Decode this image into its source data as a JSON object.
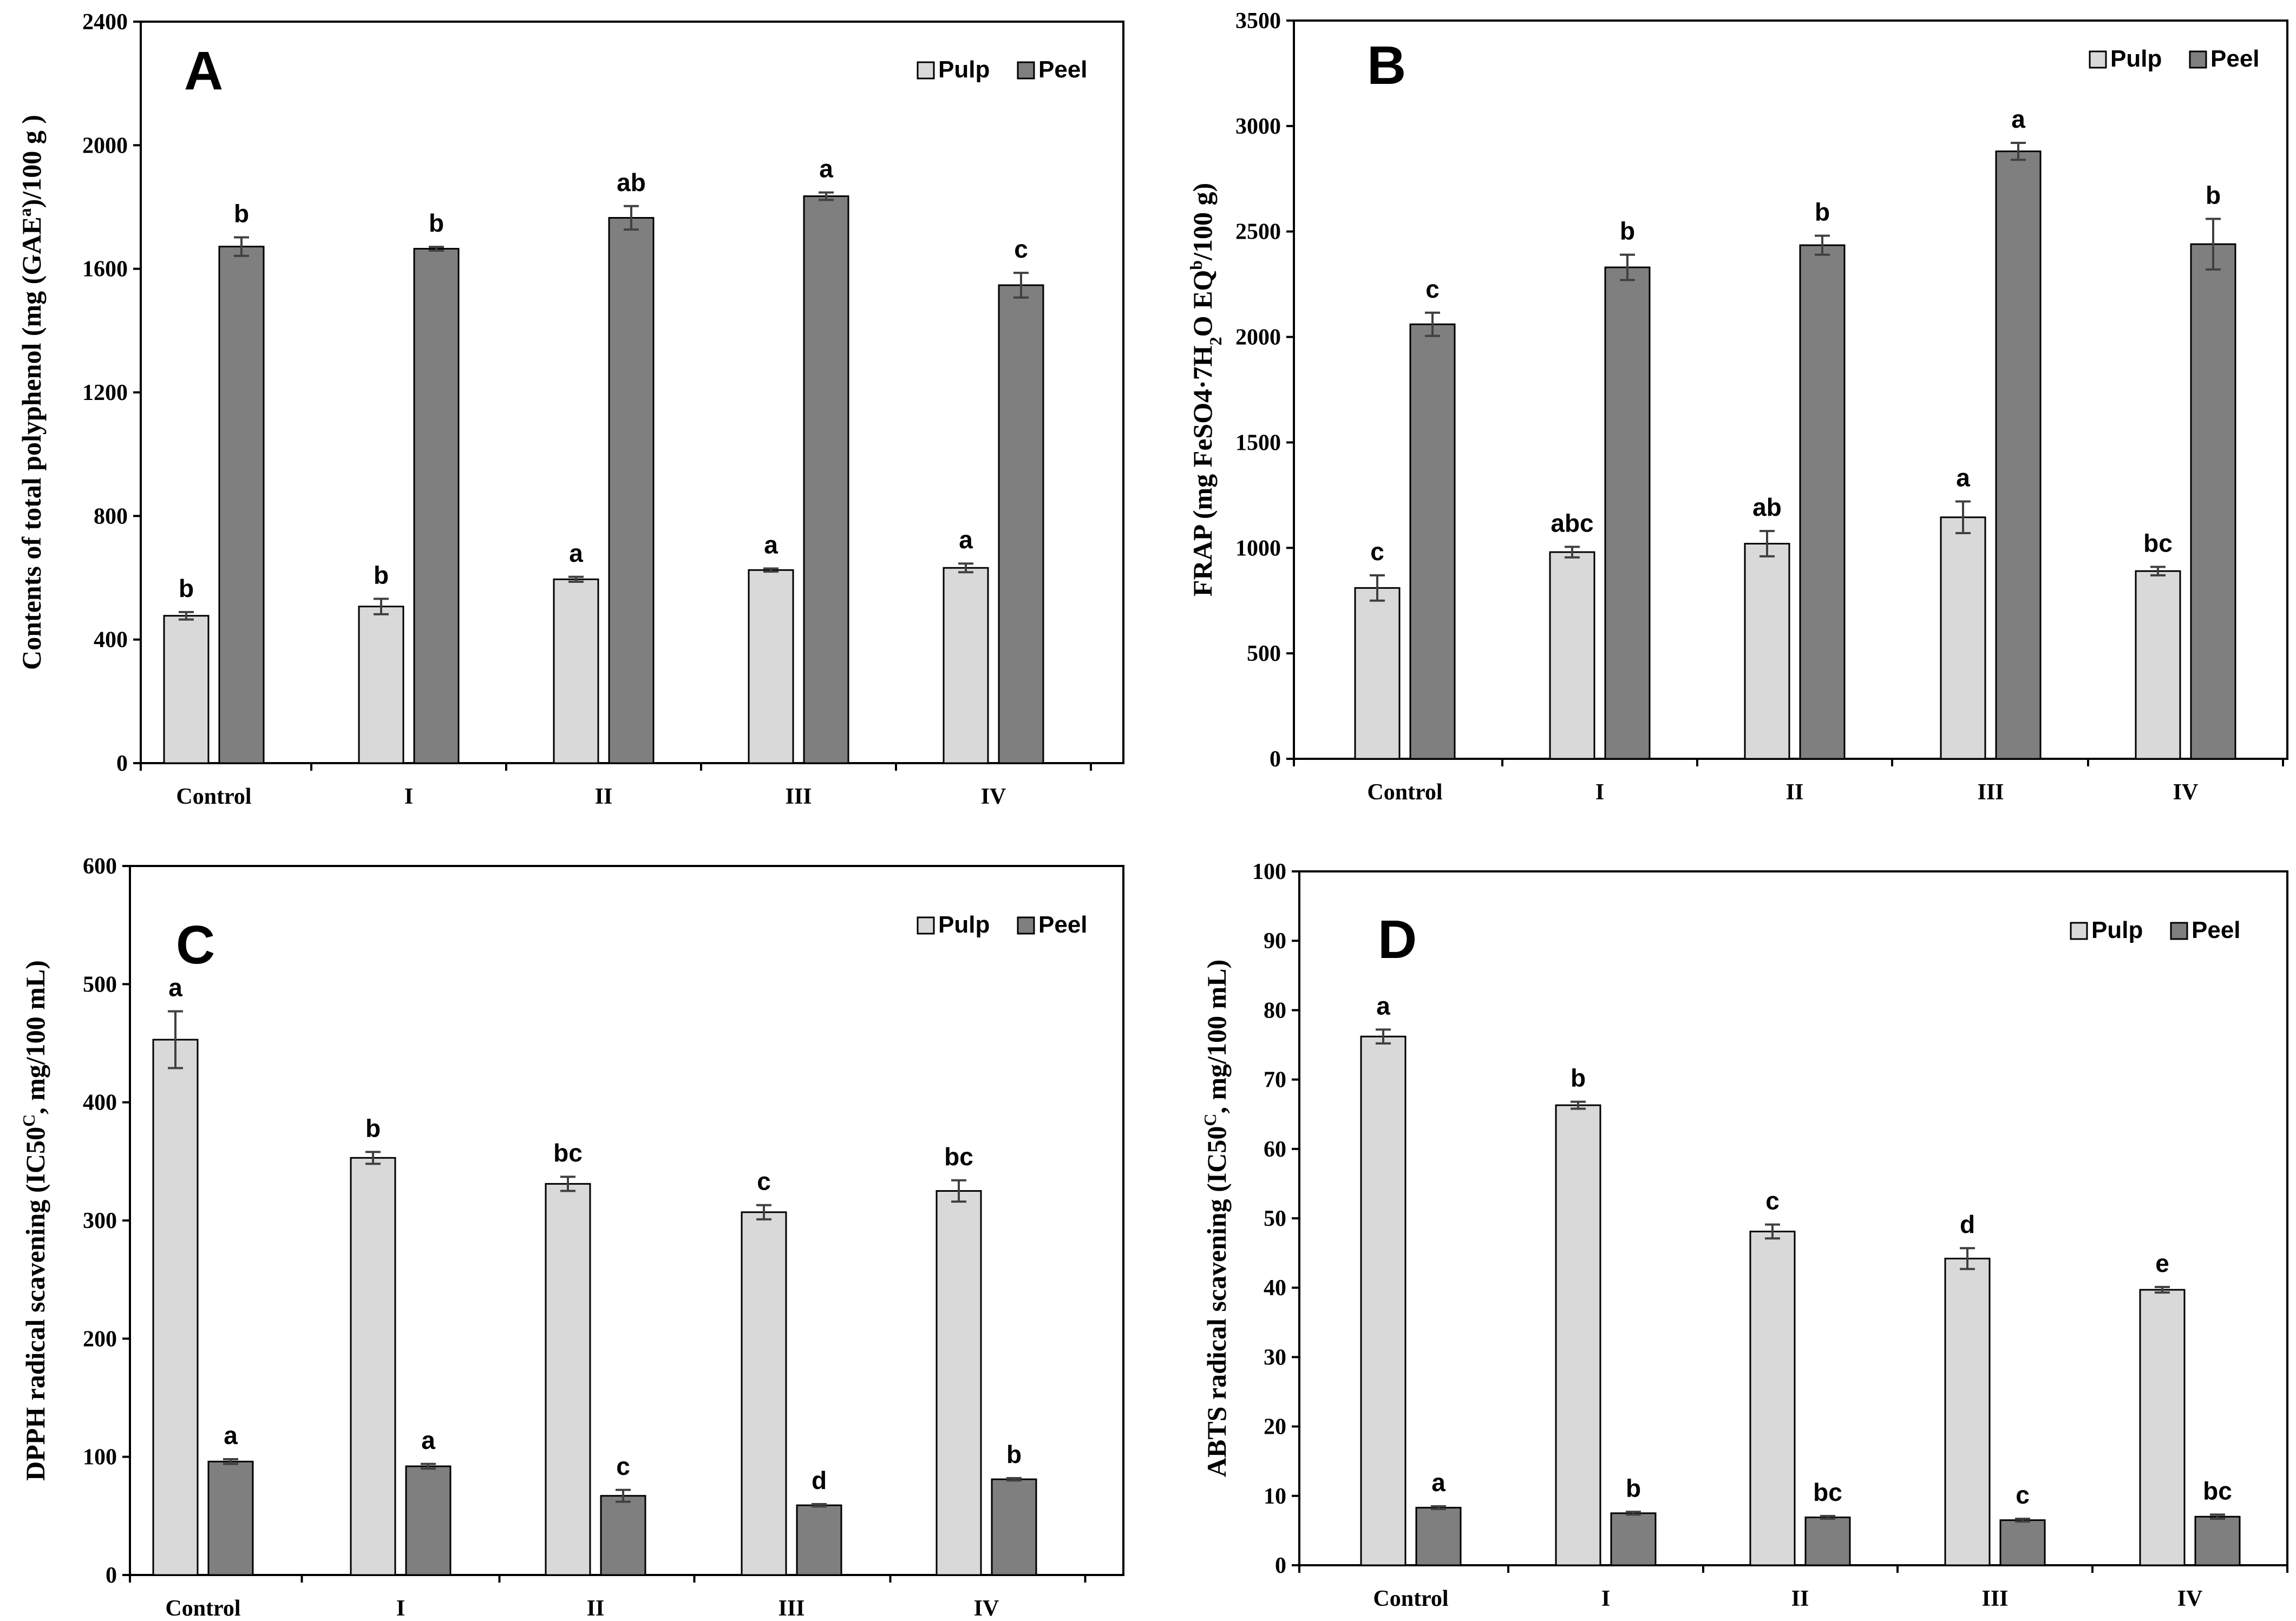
{
  "colors": {
    "pulp": "#d9d9d9",
    "peel": "#7f7f7f",
    "axis": "#000000",
    "error": "#404040"
  },
  "chart_data": [
    {
      "type": "bar",
      "panel_label": "A",
      "ylabel_parts": [
        {
          "t": "Contents of total polyphenol (mg (GAE"
        },
        {
          "t": "a",
          "sup": true
        },
        {
          "t": ")/100 g )"
        }
      ],
      "categories": [
        "Control",
        "I",
        "II",
        "III",
        "IV"
      ],
      "ylim": [
        0,
        2400
      ],
      "yticks": [
        0,
        400,
        800,
        1200,
        1600,
        2000,
        2400
      ],
      "legend_position": "top-right",
      "series": [
        {
          "name": "Pulp",
          "values": [
            477,
            507,
            595,
            625,
            632
          ],
          "errors": [
            12,
            25,
            8,
            5,
            14
          ],
          "letters": [
            "b",
            "b",
            "a",
            "a",
            "a"
          ]
        },
        {
          "name": "Peel",
          "values": [
            1672,
            1665,
            1765,
            1835,
            1547
          ],
          "errors": [
            30,
            6,
            38,
            12,
            40
          ],
          "letters": [
            "b",
            "b",
            "ab",
            "a",
            "c"
          ]
        }
      ]
    },
    {
      "type": "bar",
      "panel_label": "B",
      "ylabel_parts": [
        {
          "t": "FRAP (mg FeSO4·7H"
        },
        {
          "t": "2",
          "sub": true
        },
        {
          "t": "O EQ"
        },
        {
          "t": "b",
          "sup": true
        },
        {
          "t": "/100 g)"
        }
      ],
      "categories": [
        "Control",
        "I",
        "II",
        "III",
        "IV"
      ],
      "ylim": [
        0,
        3500
      ],
      "yticks": [
        0,
        500,
        1000,
        1500,
        2000,
        2500,
        3000,
        3500
      ],
      "legend_position": "top-right",
      "series": [
        {
          "name": "Pulp",
          "values": [
            810,
            980,
            1020,
            1145,
            890
          ],
          "errors": [
            60,
            25,
            60,
            75,
            20
          ],
          "letters": [
            "c",
            "abc",
            "ab",
            "a",
            "bc"
          ]
        },
        {
          "name": "Peel",
          "values": [
            2060,
            2330,
            2435,
            2880,
            2440
          ],
          "errors": [
            55,
            60,
            45,
            40,
            120
          ],
          "letters": [
            "c",
            "b",
            "b",
            "a",
            "b"
          ]
        }
      ]
    },
    {
      "type": "bar",
      "panel_label": "C",
      "ylabel_parts": [
        {
          "t": "DPPH radical scavening (IC50"
        },
        {
          "t": "C",
          "sup": true
        },
        {
          "t": ", mg/100 mL)"
        }
      ],
      "categories": [
        "Control",
        "I",
        "II",
        "III",
        "IV"
      ],
      "ylim": [
        0,
        600
      ],
      "yticks": [
        0,
        100,
        200,
        300,
        400,
        500,
        600
      ],
      "legend_position": "top-right",
      "series": [
        {
          "name": "Pulp",
          "values": [
            453,
            353,
            331,
            307,
            325
          ],
          "errors": [
            24,
            5,
            6,
            6,
            9
          ],
          "letters": [
            "a",
            "b",
            "bc",
            "c",
            "bc"
          ]
        },
        {
          "name": "Peel",
          "values": [
            96,
            92,
            67,
            59,
            81
          ],
          "errors": [
            2,
            2,
            5,
            1,
            1
          ],
          "letters": [
            "a",
            "a",
            "c",
            "d",
            "b"
          ]
        }
      ]
    },
    {
      "type": "bar",
      "panel_label": "D",
      "ylabel_parts": [
        {
          "t": "ABTS radical scavening (IC50"
        },
        {
          "t": "C",
          "sup": true
        },
        {
          "t": ", mg/100 mL)"
        }
      ],
      "categories": [
        "Control",
        "I",
        "II",
        "III",
        "IV"
      ],
      "ylim": [
        0,
        100
      ],
      "yticks": [
        0,
        10,
        20,
        30,
        40,
        50,
        60,
        70,
        80,
        90,
        100
      ],
      "legend_position": "top-right",
      "series": [
        {
          "name": "Pulp",
          "values": [
            76.2,
            66.3,
            48.1,
            44.2,
            39.7
          ],
          "errors": [
            1,
            0.5,
            1,
            1.5,
            0.4
          ],
          "letters": [
            "a",
            "b",
            "c",
            "d",
            "e"
          ]
        },
        {
          "name": "Peel",
          "values": [
            8.3,
            7.5,
            6.9,
            6.5,
            7.0
          ],
          "errors": [
            0.2,
            0.2,
            0.2,
            0.2,
            0.3
          ],
          "letters": [
            "a",
            "b",
            "bc",
            "c",
            "bc"
          ]
        }
      ]
    }
  ]
}
